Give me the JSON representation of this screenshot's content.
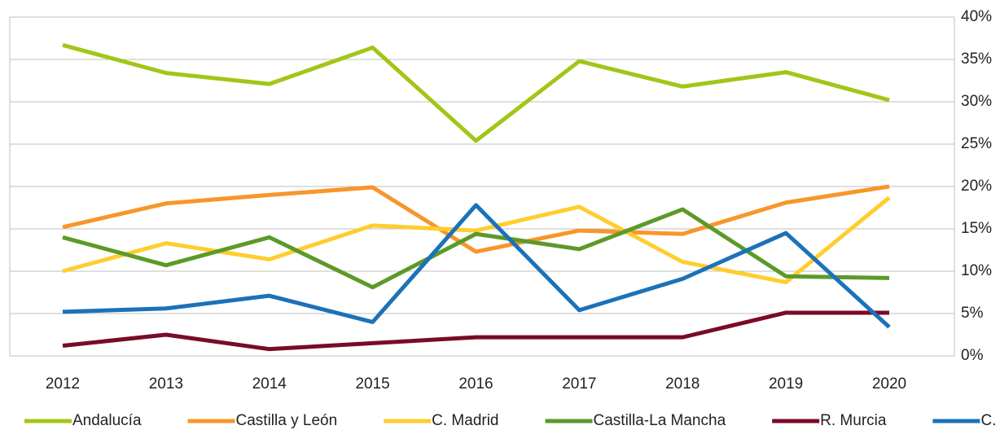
{
  "chart_data": {
    "type": "line",
    "categories": [
      "2012",
      "2013",
      "2014",
      "2015",
      "2016",
      "2017",
      "2018",
      "2019",
      "2020"
    ],
    "series": [
      {
        "name": "Andalucía",
        "color": "#a2c617",
        "values": [
          36.7,
          33.4,
          32.1,
          36.4,
          25.4,
          34.8,
          31.8,
          33.5,
          30.2
        ]
      },
      {
        "name": "Castilla y León",
        "color": "#f7962b",
        "values": [
          15.2,
          18.0,
          19.0,
          19.9,
          12.3,
          14.8,
          14.4,
          18.1,
          20.0
        ]
      },
      {
        "name": "C. Madrid",
        "color": "#ffcd2e",
        "values": [
          10.0,
          13.3,
          11.4,
          15.4,
          14.8,
          17.6,
          11.1,
          8.7,
          18.7
        ]
      },
      {
        "name": "Castilla-La Mancha",
        "color": "#5c9a28",
        "values": [
          14.0,
          10.7,
          14.0,
          8.1,
          14.4,
          12.6,
          17.3,
          9.4,
          9.2
        ]
      },
      {
        "name": "R. Murcia",
        "color": "#7a0a28",
        "values": [
          1.2,
          2.5,
          0.8,
          1.5,
          2.2,
          2.2,
          2.2,
          5.1,
          5.1
        ]
      },
      {
        "name": "C. Valenciana",
        "color": "#1b72b8",
        "values": [
          5.2,
          5.6,
          7.1,
          4.0,
          17.8,
          5.4,
          9.1,
          14.5,
          3.4
        ]
      }
    ],
    "ylim": [
      0,
      40
    ],
    "yticks": [
      {
        "value": 0,
        "label": "0%"
      },
      {
        "value": 5,
        "label": "5%"
      },
      {
        "value": 10,
        "label": "10%"
      },
      {
        "value": 15,
        "label": "15%"
      },
      {
        "value": 20,
        "label": "20%"
      },
      {
        "value": 25,
        "label": "25%"
      },
      {
        "value": 30,
        "label": "30%"
      },
      {
        "value": 35,
        "label": "35%"
      },
      {
        "value": 40,
        "label": "40%"
      }
    ],
    "grid": true,
    "legend": "bottom"
  }
}
